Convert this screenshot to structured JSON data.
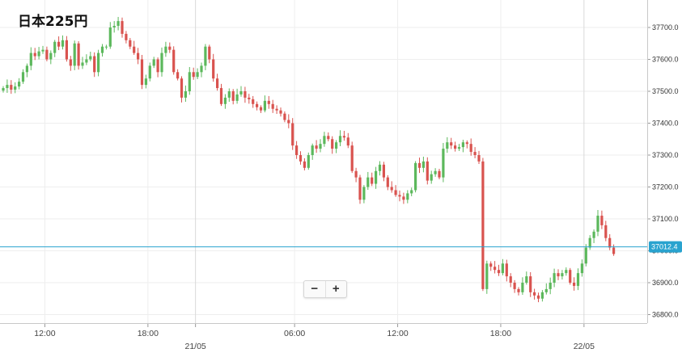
{
  "title": "日本225円",
  "zoom": {
    "minus": "−",
    "plus": "+"
  },
  "colors": {
    "up": "#5cb85c",
    "down": "#d9534f",
    "price_line": "#29a3cf",
    "grid": "#eeeeee"
  },
  "chart_data": {
    "type": "candlestick",
    "instrument": "日本225円",
    "ylim": [
      36760,
      37830
    ],
    "yticks": [
      "37700.0",
      "37600.0",
      "37500.0",
      "37400.0",
      "37300.0",
      "37200.0",
      "37100.0",
      "37000.0",
      "36900.0",
      "36800.0"
    ],
    "current_price": "37012.4",
    "current_price_value": 37012.4,
    "xticks": [
      {
        "label": "12:00",
        "bar": 10.5
      },
      {
        "label": "18:00",
        "bar": 36.5
      },
      {
        "label": "21/05",
        "bar": 48.5,
        "day": true
      },
      {
        "label": "06:00",
        "bar": 73.5
      },
      {
        "label": "12:00",
        "bar": 99.5
      },
      {
        "label": "18:00",
        "bar": 125.5
      },
      {
        "label": "22/05",
        "bar": 146.5,
        "day": true
      }
    ],
    "bars_per_hour": 4.33,
    "closes": [
      37510,
      37520,
      37505,
      37515,
      37530,
      37560,
      37580,
      37620,
      37610,
      37625,
      37630,
      37600,
      37620,
      37655,
      37640,
      37660,
      37600,
      37580,
      37650,
      37580,
      37590,
      37600,
      37610,
      37560,
      37620,
      37640,
      37640,
      37700,
      37705,
      37720,
      37680,
      37660,
      37640,
      37620,
      37600,
      37520,
      37540,
      37580,
      37600,
      37560,
      37620,
      37640,
      37630,
      37560,
      37540,
      37480,
      37500,
      37560,
      37545,
      37560,
      37580,
      37640,
      37600,
      37540,
      37510,
      37460,
      37480,
      37500,
      37470,
      37490,
      37500,
      37480,
      37475,
      37460,
      37450,
      37440,
      37470,
      37460,
      37445,
      37440,
      37430,
      37410,
      37400,
      37330,
      37300,
      37280,
      37260,
      37300,
      37330,
      37320,
      37335,
      37360,
      37350,
      37320,
      37340,
      37360,
      37355,
      37330,
      37250,
      37230,
      37160,
      37200,
      37230,
      37210,
      37250,
      37270,
      37230,
      37200,
      37190,
      37175,
      37170,
      37160,
      37180,
      37190,
      37275,
      37260,
      37280,
      37220,
      37240,
      37250,
      37230,
      37320,
      37340,
      37330,
      37320,
      37325,
      37340,
      37335,
      37310,
      37300,
      37280,
      36880,
      36960,
      36950,
      36940,
      36930,
      36960,
      36920,
      36900,
      36880,
      36870,
      36900,
      36920,
      36870,
      36860,
      36850,
      36870,
      36880,
      36900,
      36930,
      36920,
      36930,
      36940,
      36900,
      36890,
      36930,
      36960,
      37010,
      37040,
      37060,
      37110,
      37080,
      37040,
      37010,
      36990
    ]
  }
}
